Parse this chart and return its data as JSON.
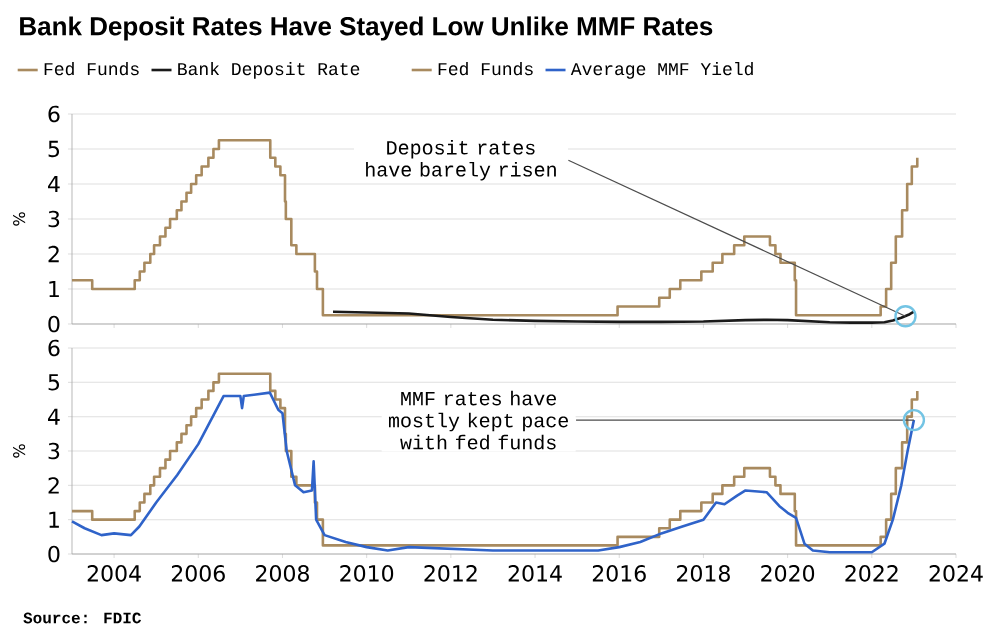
{
  "chart_data": [
    {
      "type": "line",
      "title": "Bank Deposit Rates Have Stayed Low Unlike MMF Rates",
      "ylabel": "%",
      "xlim": [
        2003,
        2024
      ],
      "ylim": [
        0,
        6
      ],
      "xticks": [
        2004,
        2006,
        2008,
        2010,
        2012,
        2014,
        2016,
        2018,
        2020,
        2022,
        2024
      ],
      "yticks": [
        0,
        1,
        2,
        3,
        4,
        5,
        6
      ],
      "tick_labels": "y",
      "grid": "y",
      "legend": "top",
      "marker": "none",
      "line_style": "solid",
      "annotations": [
        {
          "text": "Deposit rates have barely risen",
          "x": 2022.8,
          "y": 0.22
        }
      ],
      "series": [
        {
          "name": "Fed Funds",
          "type": "step",
          "color": "#a88a5f",
          "x": [
            2003.0,
            2003.48,
            2004.49,
            2004.61,
            2004.72,
            2004.86,
            2004.95,
            2005.09,
            2005.22,
            2005.33,
            2005.49,
            2005.6,
            2005.72,
            2005.83,
            2005.95,
            2006.08,
            2006.24,
            2006.36,
            2006.49,
            2007.71,
            2007.83,
            2007.95,
            2008.06,
            2008.08,
            2008.21,
            2008.33,
            2008.77,
            2008.82,
            2008.96,
            2015.96,
            2016.95,
            2017.2,
            2017.45,
            2017.95,
            2018.22,
            2018.45,
            2018.73,
            2018.97,
            2019.58,
            2019.71,
            2019.83,
            2020.17,
            2020.2,
            2022.21,
            2022.34,
            2022.46,
            2022.57,
            2022.72,
            2022.84,
            2022.95,
            2023.08
          ],
          "values": [
            1.25,
            1.0,
            1.25,
            1.5,
            1.75,
            2.0,
            2.25,
            2.5,
            2.75,
            3.0,
            3.25,
            3.5,
            3.75,
            4.0,
            4.25,
            4.5,
            4.75,
            5.0,
            5.25,
            4.75,
            4.5,
            4.25,
            3.5,
            3.0,
            2.25,
            2.0,
            1.5,
            1.0,
            0.25,
            0.5,
            0.75,
            1.0,
            1.25,
            1.5,
            1.75,
            2.0,
            2.25,
            2.5,
            2.25,
            2.0,
            1.75,
            1.25,
            0.25,
            0.5,
            1.0,
            1.75,
            2.5,
            3.25,
            4.0,
            4.5,
            4.75
          ]
        },
        {
          "name": "Bank Deposit Rate",
          "color": "#1a1a1a",
          "x": [
            2009.2,
            2010.0,
            2011.0,
            2012.0,
            2013.0,
            2014.0,
            2015.0,
            2016.0,
            2017.0,
            2018.0,
            2019.0,
            2019.5,
            2020.0,
            2020.5,
            2021.0,
            2021.5,
            2022.0,
            2022.3,
            2022.5,
            2022.7,
            2022.9,
            2023.0
          ],
          "values": [
            0.35,
            0.33,
            0.3,
            0.2,
            0.12,
            0.09,
            0.07,
            0.06,
            0.06,
            0.07,
            0.11,
            0.12,
            0.11,
            0.08,
            0.05,
            0.04,
            0.04,
            0.05,
            0.1,
            0.18,
            0.28,
            0.35
          ]
        }
      ]
    },
    {
      "type": "line",
      "ylabel": "%",
      "xlim": [
        2003,
        2024
      ],
      "ylim": [
        0,
        6
      ],
      "xticks": [
        2004,
        2006,
        2008,
        2010,
        2012,
        2014,
        2016,
        2018,
        2020,
        2022,
        2024
      ],
      "yticks": [
        0,
        1,
        2,
        3,
        4,
        5,
        6
      ],
      "grid": "y",
      "legend": "top",
      "marker": "none",
      "line_style": "solid",
      "annotations": [
        {
          "text": "MMF rates have mostly kept pace with fed funds",
          "x": 2023.0,
          "y": 3.9
        },
        "Source: FDIC"
      ],
      "series": [
        {
          "name": "Fed Funds",
          "type": "step",
          "color": "#a88a5f",
          "x": [
            2003.0,
            2003.48,
            2004.49,
            2004.61,
            2004.72,
            2004.86,
            2004.95,
            2005.09,
            2005.22,
            2005.33,
            2005.49,
            2005.6,
            2005.72,
            2005.83,
            2005.95,
            2006.08,
            2006.24,
            2006.36,
            2006.49,
            2007.71,
            2007.83,
            2007.95,
            2008.06,
            2008.08,
            2008.21,
            2008.33,
            2008.77,
            2008.82,
            2008.96,
            2015.96,
            2016.95,
            2017.2,
            2017.45,
            2017.95,
            2018.22,
            2018.45,
            2018.73,
            2018.97,
            2019.58,
            2019.71,
            2019.83,
            2020.17,
            2020.2,
            2022.21,
            2022.34,
            2022.46,
            2022.57,
            2022.72,
            2022.84,
            2022.95,
            2023.08
          ],
          "values": [
            1.25,
            1.0,
            1.25,
            1.5,
            1.75,
            2.0,
            2.25,
            2.5,
            2.75,
            3.0,
            3.25,
            3.5,
            3.75,
            4.0,
            4.25,
            4.5,
            4.75,
            5.0,
            5.25,
            4.75,
            4.5,
            4.25,
            3.5,
            3.0,
            2.25,
            2.0,
            1.5,
            1.0,
            0.25,
            0.5,
            0.75,
            1.0,
            1.25,
            1.5,
            1.75,
            2.0,
            2.25,
            2.5,
            2.25,
            2.0,
            1.75,
            1.25,
            0.25,
            0.5,
            1.0,
            1.75,
            2.5,
            3.25,
            4.0,
            4.5,
            4.75
          ]
        },
        {
          "name": "Average MMF Yield",
          "color": "#2f63c9",
          "x": [
            2003.0,
            2003.3,
            2003.7,
            2004.0,
            2004.4,
            2004.6,
            2005.0,
            2005.5,
            2006.0,
            2006.6,
            2007.0,
            2007.04,
            2007.08,
            2007.7,
            2007.9,
            2008.0,
            2008.1,
            2008.3,
            2008.5,
            2008.7,
            2008.74,
            2008.8,
            2009.0,
            2009.5,
            2010.0,
            2010.5,
            2011.0,
            2012.0,
            2013.0,
            2014.0,
            2015.5,
            2016.0,
            2016.5,
            2017.0,
            2017.5,
            2018.0,
            2018.3,
            2018.5,
            2018.8,
            2019.0,
            2019.5,
            2019.8,
            2020.0,
            2020.2,
            2020.4,
            2020.6,
            2021.0,
            2022.0,
            2022.3,
            2022.5,
            2022.7,
            2022.85,
            2023.0
          ],
          "values": [
            0.95,
            0.75,
            0.55,
            0.6,
            0.55,
            0.8,
            1.5,
            2.3,
            3.2,
            4.6,
            4.6,
            4.25,
            4.6,
            4.7,
            4.2,
            4.1,
            3.0,
            2.0,
            1.8,
            1.85,
            2.7,
            1.0,
            0.55,
            0.35,
            0.2,
            0.1,
            0.2,
            0.15,
            0.1,
            0.1,
            0.1,
            0.2,
            0.35,
            0.6,
            0.8,
            1.0,
            1.5,
            1.45,
            1.7,
            1.85,
            1.8,
            1.4,
            1.2,
            1.05,
            0.3,
            0.1,
            0.05,
            0.05,
            0.3,
            1.0,
            2.0,
            3.0,
            3.9
          ]
        }
      ]
    }
  ]
}
